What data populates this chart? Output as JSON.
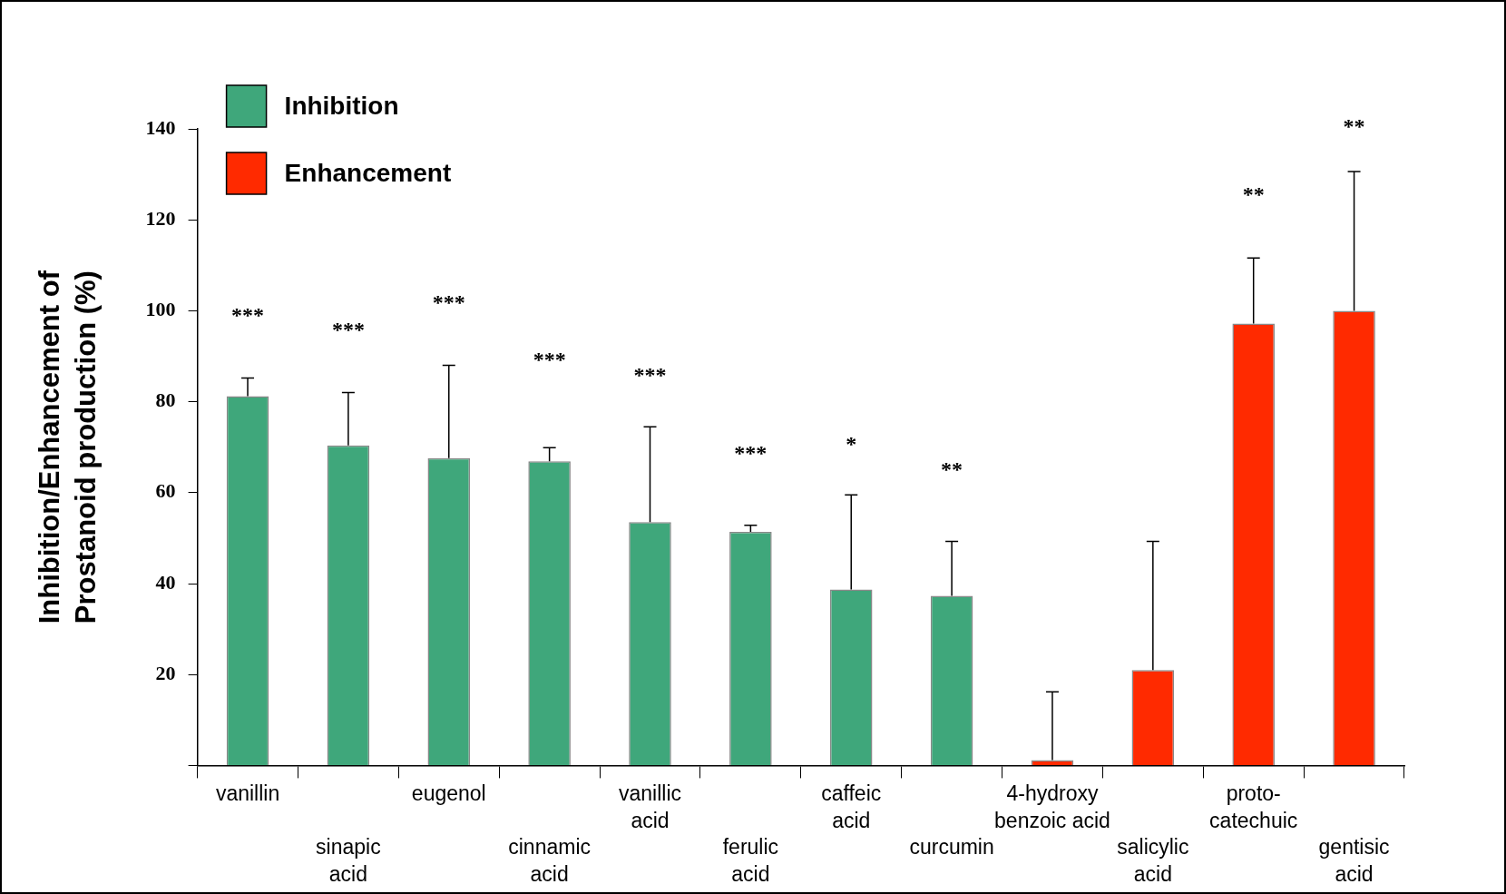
{
  "chart_data": {
    "type": "bar",
    "ylabel": "Inhibition/Enhancement of\nProstanoid production (%)",
    "categories": [
      "vanillin",
      "sinapic\nacid",
      "eugenol",
      "cinnamic\nacid",
      "vanillic\nacid",
      "ferulic\nacid",
      "caffeic\nacid",
      "curcumin",
      "4-hydroxy\nbenzoic acid",
      "salicylic\nacid",
      "proto-\ncatechuic",
      "gentisic\nacid"
    ],
    "series": [
      {
        "name": "Inhibition",
        "color": "#3fa77b",
        "values": [
          81.2,
          70.4,
          67.6,
          66.9,
          53.5,
          51.4,
          38.7,
          37.3,
          null,
          null,
          null,
          null
        ],
        "errors": [
          [
            81.2,
            85.2
          ],
          [
            70.4,
            82
          ],
          [
            67.6,
            88
          ],
          [
            66.9,
            69.9
          ],
          [
            53.5,
            74.5
          ],
          [
            51.4,
            52.8
          ],
          [
            38.7,
            59.5
          ],
          [
            37.3,
            49.3
          ],
          null,
          null,
          null,
          null
        ]
      },
      {
        "name": "Enhancement",
        "color": "#ff2a00",
        "values": [
          null,
          null,
          null,
          null,
          null,
          null,
          null,
          null,
          1.2,
          21,
          97.2,
          100
        ],
        "errors": [
          null,
          null,
          null,
          null,
          null,
          null,
          null,
          null,
          [
            1.2,
            16.2
          ],
          [
            21,
            49.3
          ],
          [
            97.2,
            111.6
          ],
          [
            100,
            130.6
          ]
        ]
      }
    ],
    "ylim": [
      0,
      140
    ],
    "yticks": [
      {
        "value": 0,
        "label": null
      },
      20,
      40,
      60,
      80,
      100,
      120,
      140
    ],
    "grid": false,
    "legend": "top left",
    "annotations": [
      "***",
      "***",
      "***",
      "***",
      "***",
      "***",
      "*",
      "**",
      "**",
      "**"
    ]
  }
}
